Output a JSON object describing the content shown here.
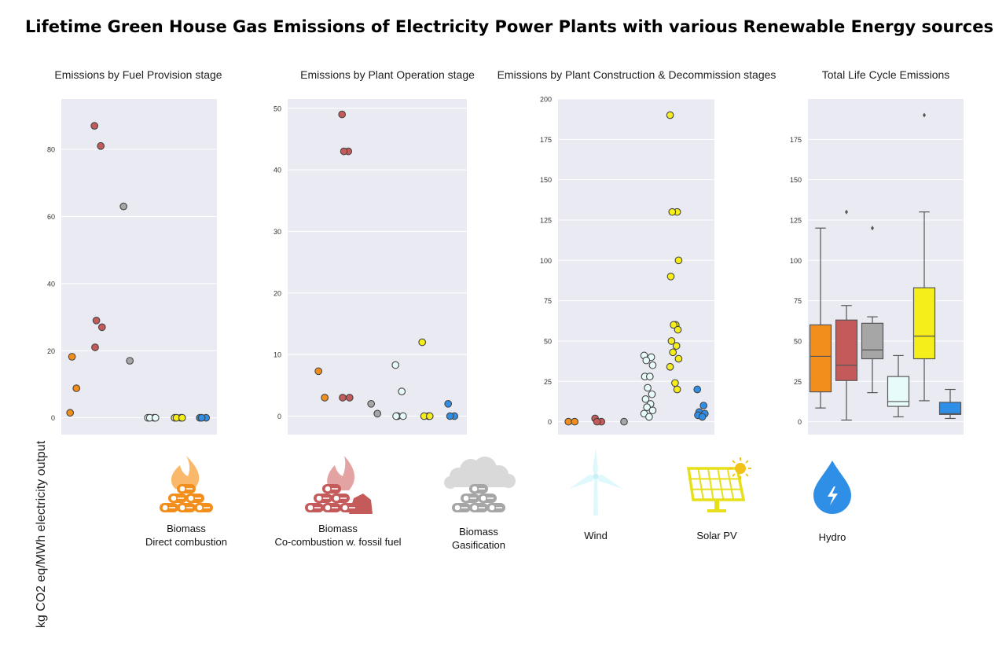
{
  "title": "Lifetime Green House Gas Emissions of Electricity Power Plants with various Renewable Energy sources",
  "ylabel": "kg CO2 eq/MWh electricity output",
  "colors": {
    "biomass_direct": "#f28e1c",
    "biomass_cocombustion": "#c45a5a",
    "biomass_gasification": "#a6a6a6",
    "wind": "#e8fbfb",
    "solar": "#f5ee1a",
    "hydro": "#2f8fe6",
    "panel_bg": "#eaeaf2"
  },
  "legend": [
    {
      "key": "biomass_direct",
      "line1": "Biomass",
      "line2": "Direct combustion",
      "icon": "log-pile-flame-icon"
    },
    {
      "key": "biomass_cocombustion",
      "line1": "Biomass",
      "line2": "Co-combustion w. fossil fuel",
      "icon": "log-pile-flame-coal-icon"
    },
    {
      "key": "biomass_gasification",
      "line1": "Biomass",
      "line2": "Gasification",
      "icon": "log-pile-cloud-icon"
    },
    {
      "key": "wind",
      "line1": "Wind",
      "line2": "",
      "icon": "wind-turbine-icon"
    },
    {
      "key": "solar",
      "line1": "Solar PV",
      "line2": "",
      "icon": "solar-panel-icon"
    },
    {
      "key": "hydro",
      "line1": "Hydro",
      "line2": "",
      "icon": "water-drop-icon"
    }
  ],
  "chart_data": [
    {
      "type": "scatter",
      "title": "Emissions by Fuel Provision stage",
      "ylim": [
        -5,
        95
      ],
      "yticks": [
        0,
        20,
        40,
        60,
        80
      ],
      "grid": true,
      "categories": [
        "Biomass Direct combustion",
        "Biomass Co-combustion w. fossil fuel",
        "Biomass Gasification",
        "Wind",
        "Solar PV",
        "Hydro"
      ],
      "series": [
        {
          "key": "biomass_direct",
          "values": [
            1.5,
            8.8,
            18.2
          ]
        },
        {
          "key": "biomass_cocombustion",
          "values": [
            87,
            81,
            29,
            27,
            21
          ]
        },
        {
          "key": "biomass_gasification",
          "values": [
            63,
            17
          ]
        },
        {
          "key": "wind",
          "values": [
            0,
            0,
            0,
            0
          ]
        },
        {
          "key": "solar",
          "values": [
            0,
            0,
            0,
            0
          ]
        },
        {
          "key": "hydro",
          "values": [
            0,
            0,
            0
          ]
        }
      ]
    },
    {
      "type": "scatter",
      "title": "Emissions by Plant Operation stage",
      "ylim": [
        -3,
        51.5
      ],
      "yticks": [
        0,
        10,
        20,
        30,
        40,
        50
      ],
      "grid": true,
      "categories": [
        "Biomass Direct combustion",
        "Biomass Co-combustion w. fossil fuel",
        "Biomass Gasification",
        "Wind",
        "Solar PV",
        "Hydro"
      ],
      "series": [
        {
          "key": "biomass_direct",
          "values": [
            7.3,
            3
          ]
        },
        {
          "key": "biomass_cocombustion",
          "values": [
            49,
            43,
            43,
            3,
            3
          ]
        },
        {
          "key": "biomass_gasification",
          "values": [
            2,
            0.4
          ]
        },
        {
          "key": "wind",
          "values": [
            8.3,
            4,
            0,
            0,
            0
          ]
        },
        {
          "key": "solar",
          "values": [
            12,
            0,
            0,
            0
          ]
        },
        {
          "key": "hydro",
          "values": [
            2,
            0,
            0
          ]
        }
      ]
    },
    {
      "type": "scatter",
      "title": "Emissions by Plant Construction & Decommission stages",
      "ylim": [
        -8,
        200
      ],
      "yticks": [
        0,
        25,
        50,
        75,
        100,
        125,
        150,
        175,
        200
      ],
      "grid": true,
      "categories": [
        "Biomass Direct combustion",
        "Biomass Co-combustion w. fossil fuel",
        "Biomass Gasification",
        "Wind",
        "Solar PV",
        "Hydro"
      ],
      "series": [
        {
          "key": "biomass_direct",
          "values": [
            0,
            0
          ]
        },
        {
          "key": "biomass_cocombustion",
          "values": [
            2,
            0,
            0
          ]
        },
        {
          "key": "biomass_gasification",
          "values": [
            0
          ]
        },
        {
          "key": "wind",
          "values": [
            41,
            40,
            38,
            35,
            28,
            28,
            21,
            17,
            14,
            11,
            9,
            7,
            5,
            3
          ]
        },
        {
          "key": "solar",
          "values": [
            190,
            130,
            130,
            100,
            90,
            60,
            60,
            57,
            50,
            47,
            43,
            39,
            34,
            24,
            20
          ]
        },
        {
          "key": "hydro",
          "values": [
            20,
            10,
            6,
            5,
            4,
            3
          ]
        }
      ]
    },
    {
      "type": "box",
      "title": "Total Life Cycle Emissions",
      "ylim": [
        -8,
        200
      ],
      "yticks": [
        0,
        25,
        50,
        75,
        100,
        125,
        150,
        175
      ],
      "grid": true,
      "categories": [
        "Biomass Direct combustion",
        "Biomass Co-combustion w. fossil fuel",
        "Biomass Gasification",
        "Wind",
        "Solar PV",
        "Hydro"
      ],
      "boxes": [
        {
          "key": "biomass_direct",
          "whisker_low": 8.5,
          "q1": 18.5,
          "median": 40.5,
          "q3": 60,
          "whisker_high": 120,
          "outliers": []
        },
        {
          "key": "biomass_cocombustion",
          "whisker_low": 1,
          "q1": 25.5,
          "median": 35,
          "q3": 63,
          "whisker_high": 72,
          "outliers": [
            130
          ]
        },
        {
          "key": "biomass_gasification",
          "whisker_low": 18,
          "q1": 39,
          "median": 44.5,
          "q3": 61,
          "whisker_high": 65,
          "outliers": [
            120
          ]
        },
        {
          "key": "wind",
          "whisker_low": 3,
          "q1": 9.5,
          "median": 12.5,
          "q3": 28,
          "whisker_high": 41,
          "outliers": []
        },
        {
          "key": "solar",
          "whisker_low": 13,
          "q1": 39,
          "median": 53,
          "q3": 83,
          "whisker_high": 130,
          "outliers": [
            190
          ]
        },
        {
          "key": "hydro",
          "whisker_low": 2,
          "q1": 4.5,
          "median": 5,
          "q3": 12,
          "whisker_high": 20,
          "outliers": []
        }
      ]
    }
  ]
}
